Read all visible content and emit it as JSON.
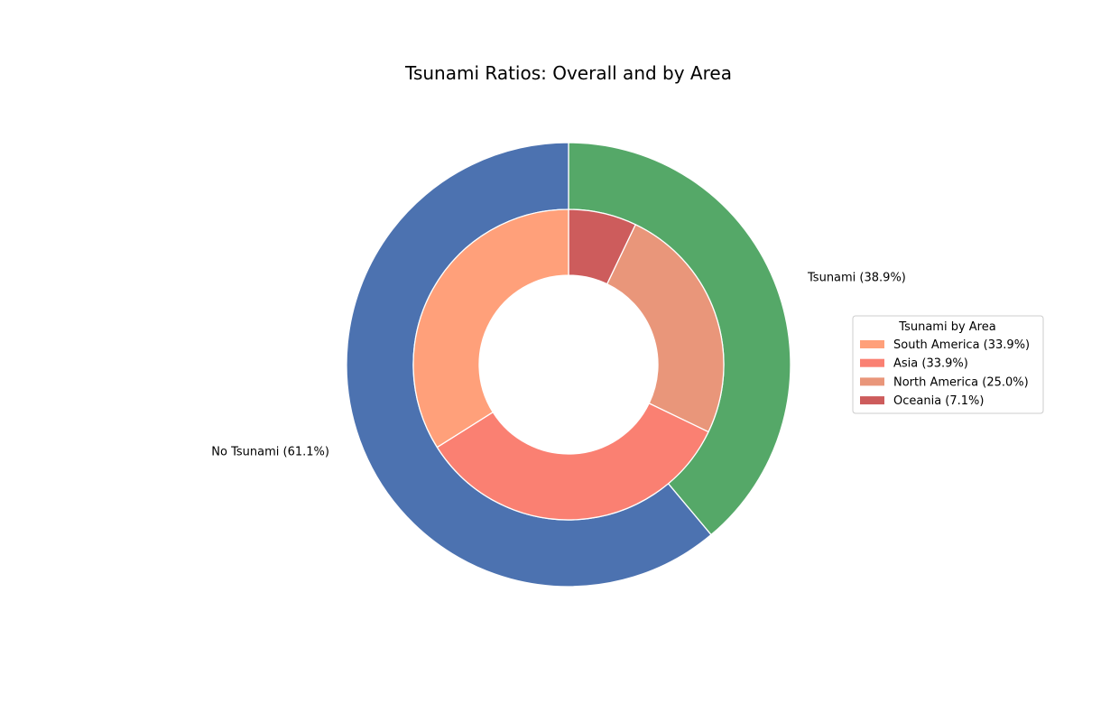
{
  "chart_data": {
    "type": "pie",
    "subtype": "nested-donut",
    "title": "Tsunami Ratios: Overall and by Area",
    "start_angle_deg": 90,
    "direction": "clockwise",
    "outer_ring": [
      {
        "label": "Tsunami (38.9%)",
        "value": 38.9,
        "color": "#55A868"
      },
      {
        "label": "No Tsunami (61.1%)",
        "value": 61.1,
        "color": "#4C72B0"
      }
    ],
    "inner_ring": [
      {
        "label": "Oceania (7.1%)",
        "value": 7.1,
        "color": "#CD5C5C"
      },
      {
        "label": "North America (25.0%)",
        "value": 25.0,
        "color": "#E9967A"
      },
      {
        "label": "Asia (33.9%)",
        "value": 33.9,
        "color": "#FA8072"
      },
      {
        "label": "South America (33.9%)",
        "value": 33.9,
        "color": "#FFA07A"
      }
    ],
    "legend": {
      "title": "Tsunami by Area",
      "placement": "right",
      "entries": [
        {
          "label": "South America (33.9%)",
          "color": "#FFA07A"
        },
        {
          "label": "Asia (33.9%)",
          "color": "#FA8072"
        },
        {
          "label": "North America (25.0%)",
          "color": "#E9967A"
        },
        {
          "label": "Oceania (7.1%)",
          "color": "#CD5C5C"
        }
      ]
    }
  }
}
